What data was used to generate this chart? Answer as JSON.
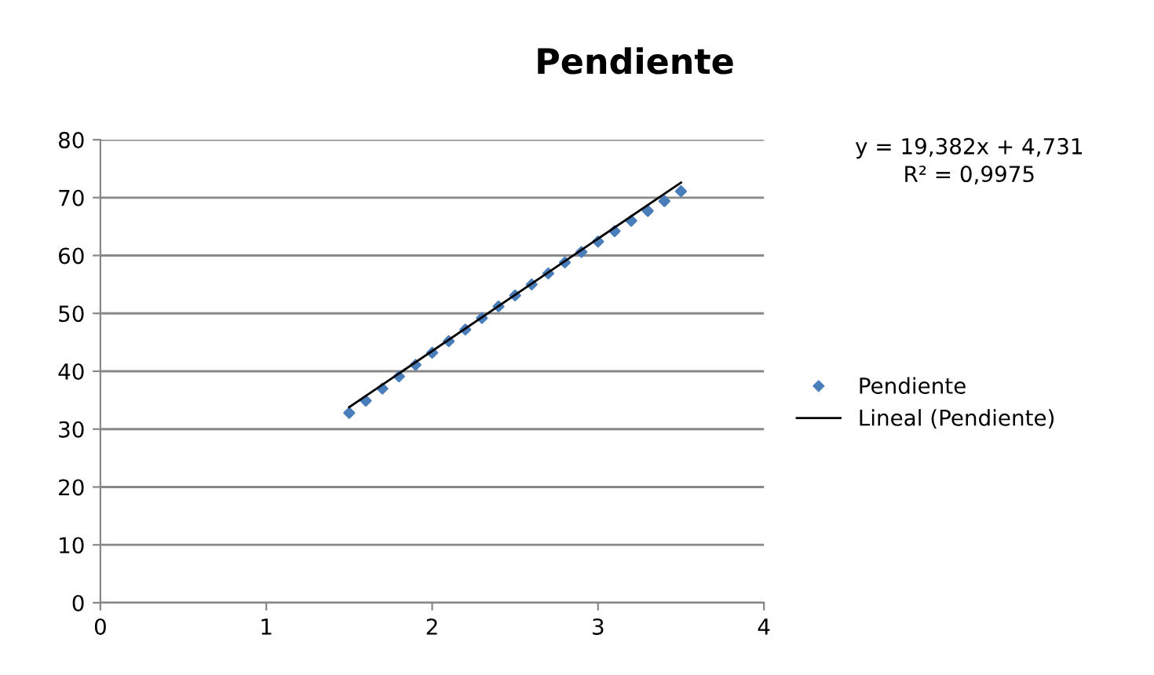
{
  "chart_data": {
    "type": "scatter",
    "title": "Pendiente",
    "x": [
      1.5,
      1.6,
      1.7,
      1.8,
      1.9,
      2.0,
      2.1,
      2.2,
      2.3,
      2.4,
      2.5,
      2.6,
      2.7,
      2.8,
      2.9,
      3.0,
      3.1,
      3.2,
      3.3,
      3.4,
      3.5
    ],
    "series": [
      {
        "name": "Pendiente",
        "color": "#4a7ebb",
        "marker": "diamond",
        "values": [
          32.8,
          34.9,
          37.0,
          39.1,
          41.1,
          43.2,
          45.2,
          47.2,
          49.2,
          51.2,
          53.1,
          55.0,
          56.9,
          58.8,
          60.6,
          62.4,
          64.2,
          66.0,
          67.7,
          69.4,
          71.1
        ]
      },
      {
        "name": "Lineal (Pendiente)",
        "type": "line",
        "color": "#000000",
        "line_style": "solid",
        "marker": "none",
        "x": [
          1.5,
          3.5
        ],
        "values": [
          33.8,
          72.6
        ]
      }
    ],
    "annotations": [
      "y = 19,382x + 4,731\nR² = 0,9975"
    ],
    "xlim": [
      0,
      4
    ],
    "xticks": [
      0,
      1,
      2,
      3,
      4
    ],
    "ylim": [
      0,
      80
    ],
    "yticks": [
      0,
      10,
      20,
      30,
      40,
      50,
      60,
      70,
      80
    ],
    "grid": "y",
    "legend": "right"
  }
}
